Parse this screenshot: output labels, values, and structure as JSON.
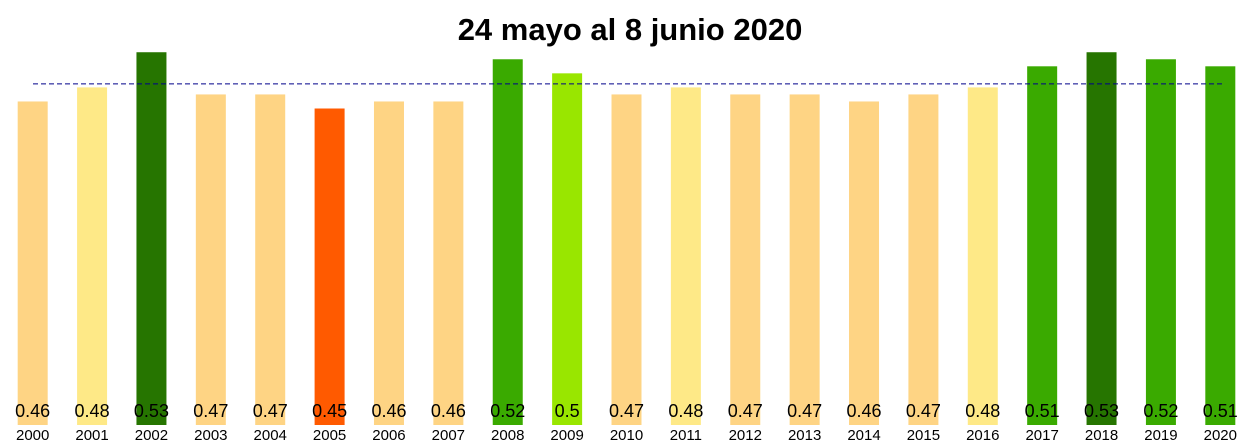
{
  "chart_data": {
    "type": "bar",
    "title": "24 mayo al 8 junio 2020",
    "categories": [
      "2000",
      "2001",
      "2002",
      "2003",
      "2004",
      "2005",
      "2006",
      "2007",
      "2008",
      "2009",
      "2010",
      "2011",
      "2012",
      "2013",
      "2014",
      "2015",
      "2016",
      "2017",
      "2018",
      "2019",
      "2020"
    ],
    "values": [
      0.46,
      0.48,
      0.53,
      0.47,
      0.47,
      0.45,
      0.46,
      0.46,
      0.52,
      0.5,
      0.47,
      0.48,
      0.47,
      0.47,
      0.46,
      0.47,
      0.48,
      0.51,
      0.53,
      0.52,
      0.51
    ],
    "colors": [
      "#fed484",
      "#fee987",
      "#267500",
      "#fed484",
      "#fed484",
      "#ff5a00",
      "#fed484",
      "#fed484",
      "#3aaa00",
      "#99e600",
      "#fed484",
      "#fee987",
      "#fed484",
      "#fed484",
      "#fed484",
      "#fed484",
      "#fee987",
      "#3aaa00",
      "#267500",
      "#3aaa00",
      "#3aaa00"
    ],
    "ylim": [
      0,
      0.6
    ],
    "reference_line": {
      "value": 0.485,
      "color": "#00008b"
    }
  }
}
